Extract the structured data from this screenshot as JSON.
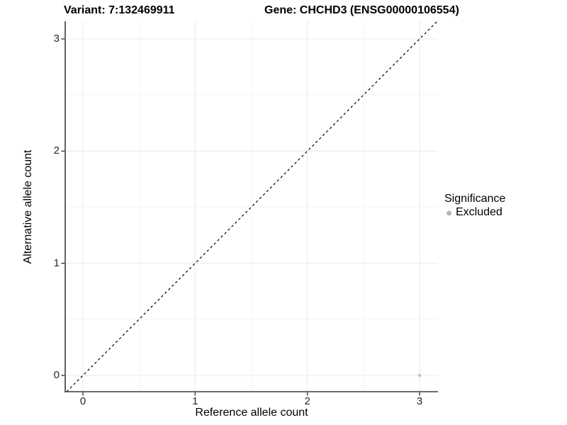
{
  "figure": {
    "background": "#ffffff"
  },
  "chart_data": {
    "type": "scatter",
    "titles": [
      "Variant: 7:132469911",
      "Gene: CHCHD3 (ENSG00000106554)"
    ],
    "xlabel": "Reference allele count",
    "ylabel": "Alternative allele count",
    "xlim": [
      -0.16,
      3.17
    ],
    "ylim": [
      -0.16,
      3.17
    ],
    "x_ticks": [
      0,
      1,
      2,
      3
    ],
    "y_ticks": [
      0,
      1,
      2,
      3
    ],
    "x_minor_ticks": [
      0.5,
      1.5,
      2.5
    ],
    "y_minor_ticks": [
      0.5,
      1.5,
      2.5
    ],
    "grid": "major and minor, light gray on white",
    "series": [
      {
        "name": "Excluded",
        "color": "#c2c2c2",
        "points": [
          {
            "x": 3,
            "y": 0
          }
        ]
      }
    ],
    "reference_line": {
      "label": "y = x",
      "slope": 1,
      "intercept": 0,
      "style": "dashed",
      "color": "#000000"
    },
    "legend": {
      "title": "Significance",
      "position": "right",
      "entries": [
        {
          "label": "Excluded",
          "color": "#b8b8b8"
        }
      ]
    },
    "colors": {
      "background": "#ffffff",
      "major_grid": "#ebebeb",
      "minor_grid": "#f3f3f3",
      "axis_line": "#3a3a3a",
      "tick_label": "#262626",
      "text": "#000000"
    }
  }
}
